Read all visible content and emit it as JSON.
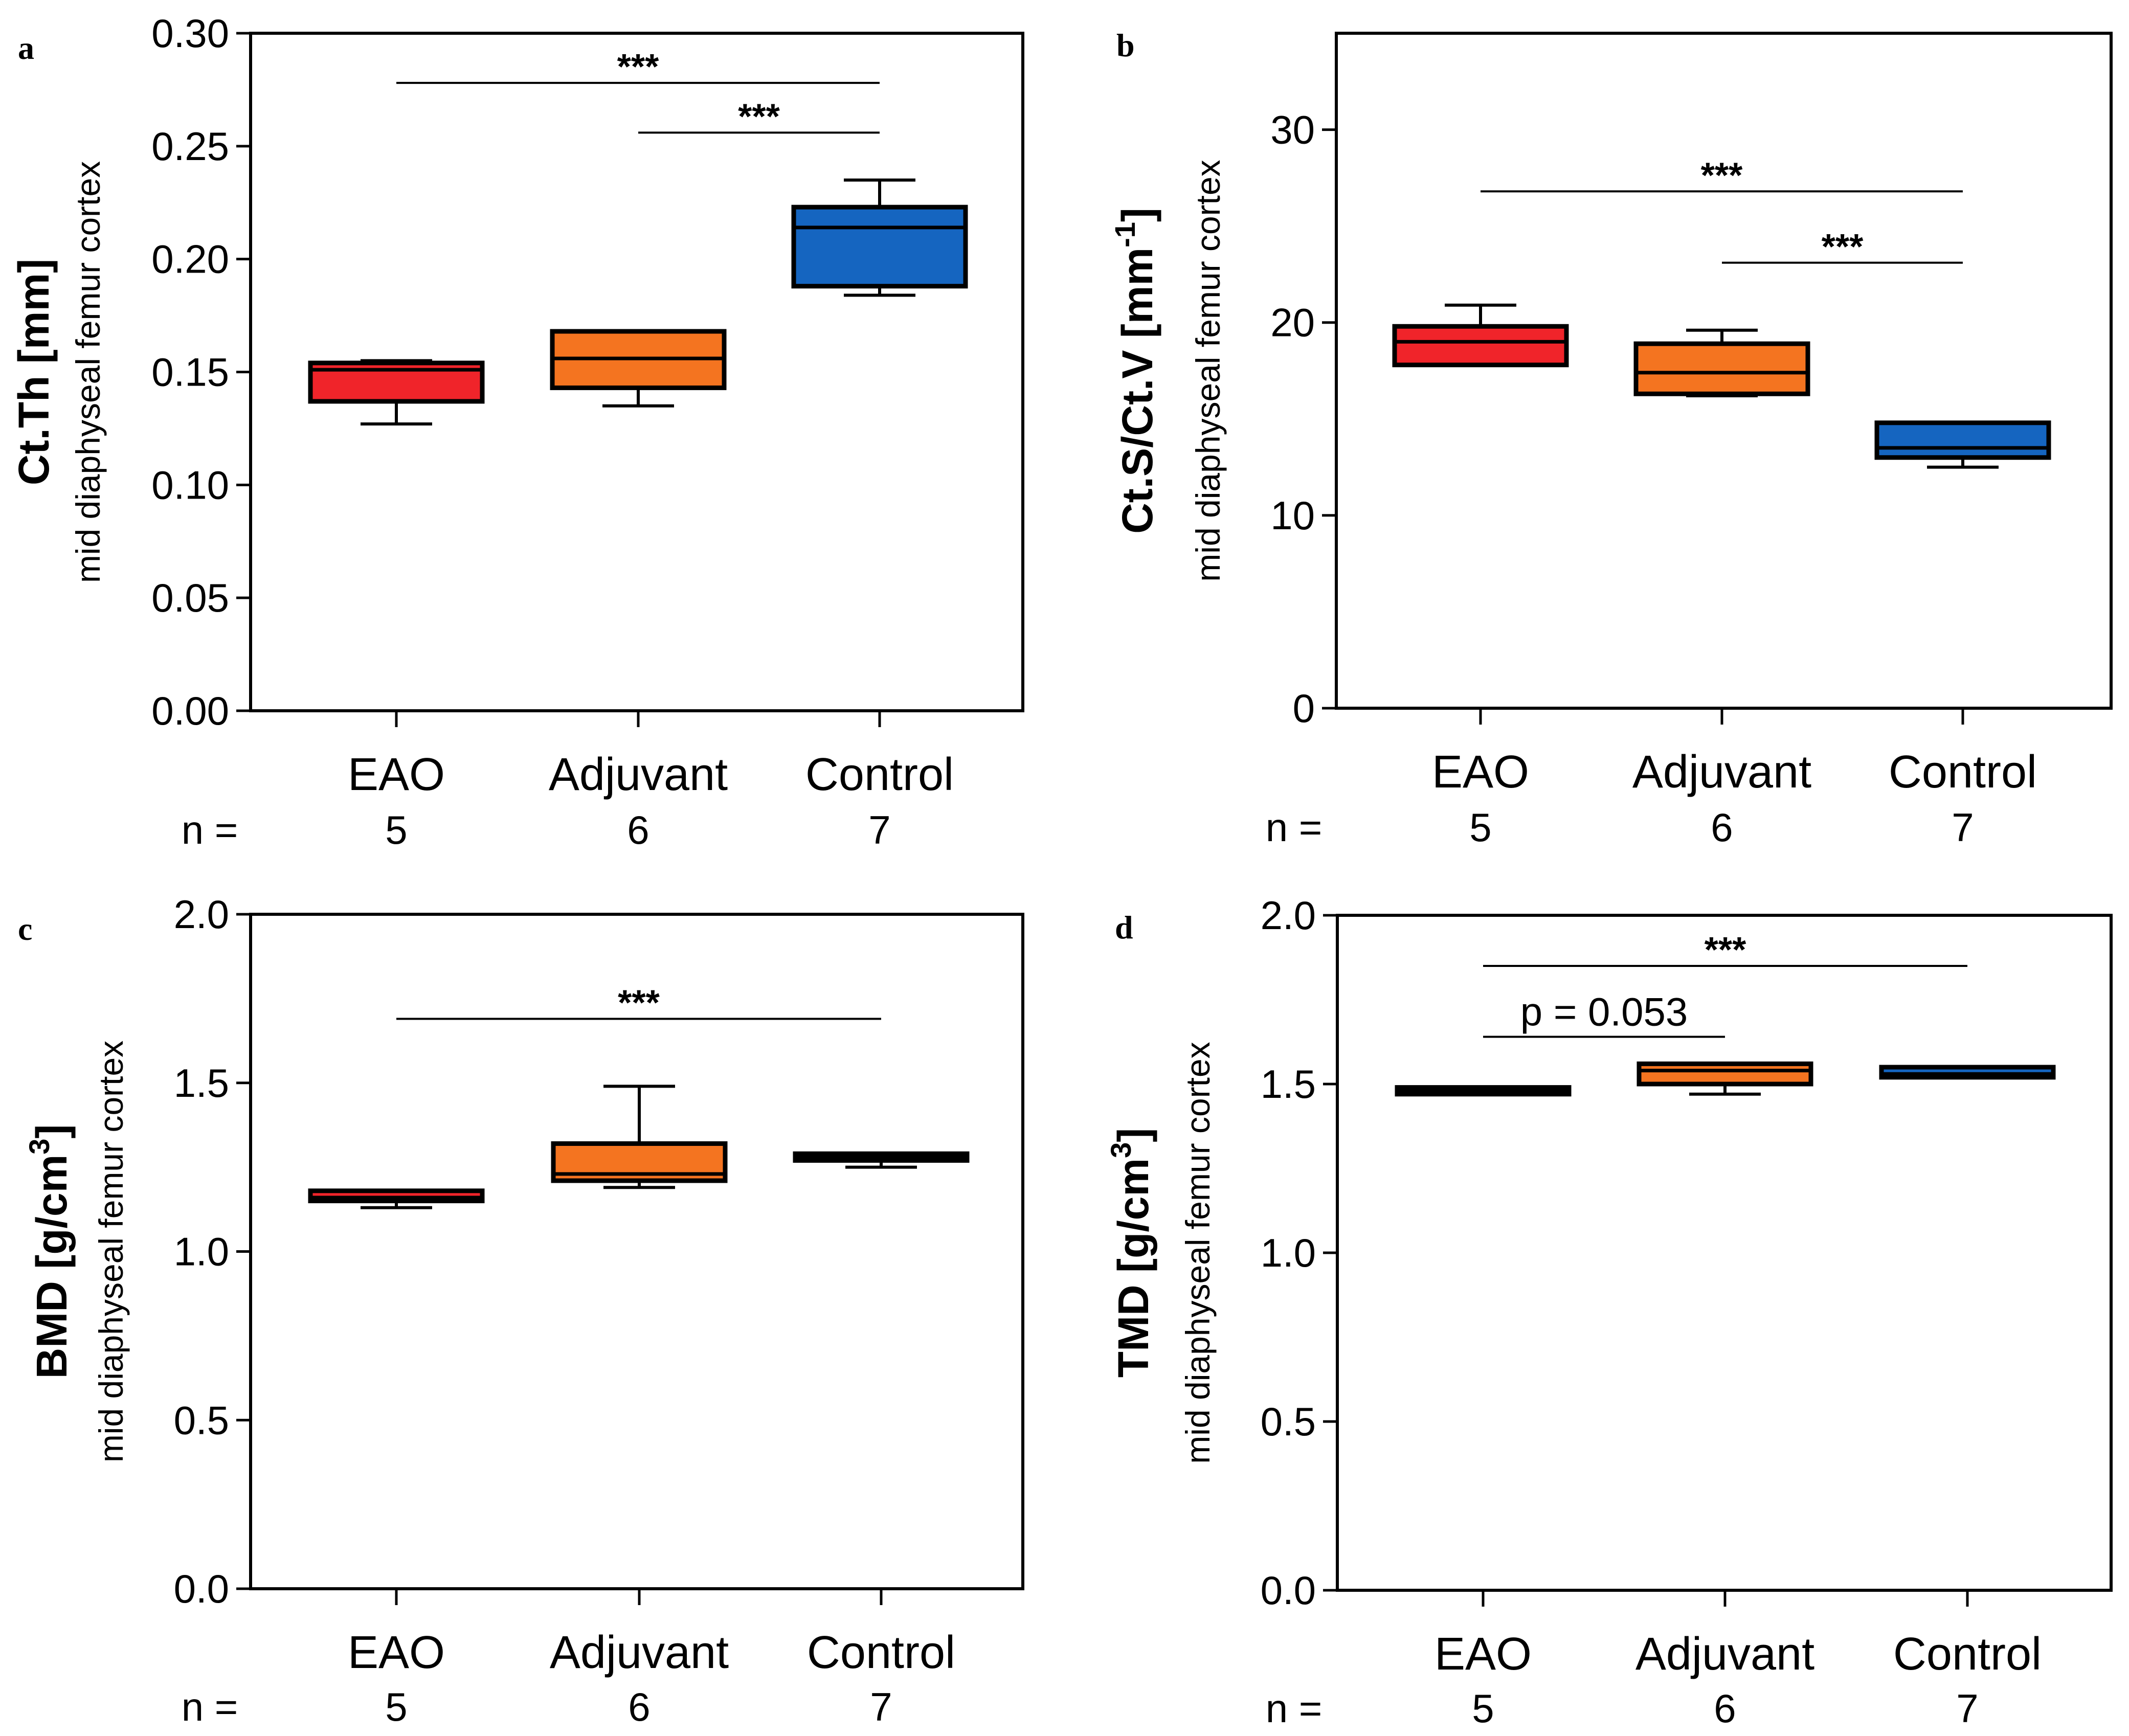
{
  "figure": {
    "n_prefix": "n ="
  },
  "chart_data": [
    {
      "panel": "a",
      "type": "box",
      "ylabel": {
        "main": "Ct.Th [mm]",
        "sup": "",
        "after": "",
        "sub": "mid diaphyseal femur cortex"
      },
      "ylim": [
        0,
        0.3
      ],
      "yticks": [
        0,
        0.05,
        0.1,
        0.15,
        0.2,
        0.25,
        0.3
      ],
      "ytick_labels": [
        "0.00",
        "0.05",
        "0.10",
        "0.15",
        "0.20",
        "0.25",
        "0.30"
      ],
      "categories": [
        "EAO",
        "Adjuvant",
        "Control"
      ],
      "n": [
        "5",
        "6",
        "7"
      ],
      "colors": [
        "#f0242a",
        "#f47420",
        "#1565c0"
      ],
      "boxes": [
        {
          "min": 0.127,
          "q1": 0.137,
          "median": 0.151,
          "q3": 0.154,
          "max": 0.155
        },
        {
          "min": 0.135,
          "q1": 0.143,
          "median": 0.156,
          "q3": 0.168,
          "max": 0.168
        },
        {
          "min": 0.184,
          "q1": 0.188,
          "median": 0.214,
          "q3": 0.223,
          "max": 0.235
        }
      ],
      "significance": [
        {
          "from": 0,
          "to": 2,
          "y": 0.278,
          "label": "***"
        },
        {
          "from": 1,
          "to": 2,
          "y": 0.256,
          "label": "***"
        }
      ]
    },
    {
      "panel": "b",
      "type": "box",
      "ylabel": {
        "main": "Ct.S/Ct.V [mm",
        "sup": "-1",
        "after": "]",
        "sub": "mid diaphyseal femur cortex"
      },
      "ylim": [
        0,
        35
      ],
      "yticks": [
        0,
        10,
        20,
        30
      ],
      "ytick_labels": [
        "0",
        "10",
        "20",
        "30"
      ],
      "categories": [
        "EAO",
        "Adjuvant",
        "Control"
      ],
      "n": [
        "5",
        "6",
        "7"
      ],
      "colors": [
        "#f0242a",
        "#f47420",
        "#1565c0"
      ],
      "boxes": [
        {
          "min": 17.8,
          "q1": 17.8,
          "median": 19.0,
          "q3": 19.8,
          "max": 20.9
        },
        {
          "min": 16.2,
          "q1": 16.3,
          "median": 17.4,
          "q3": 18.9,
          "max": 19.6
        },
        {
          "min": 12.5,
          "q1": 13.0,
          "median": 13.5,
          "q3": 14.8,
          "max": 14.8
        }
      ],
      "significance": [
        {
          "from": 0,
          "to": 2,
          "y": 26.8,
          "label": "***"
        },
        {
          "from": 1,
          "to": 2,
          "y": 23.1,
          "label": "***"
        }
      ]
    },
    {
      "panel": "c",
      "type": "box",
      "ylabel": {
        "main": "BMD [g/cm",
        "sup": "3",
        "after": "]",
        "sub": "mid diaphyseal femur cortex"
      },
      "ylim": [
        0,
        2
      ],
      "yticks": [
        0,
        0.5,
        1,
        1.5,
        2
      ],
      "ytick_labels": [
        "0.0",
        "0.5",
        "1.0",
        "1.5",
        "2.0"
      ],
      "categories": [
        "EAO",
        "Adjuvant",
        "Control"
      ],
      "n": [
        "5",
        "6",
        "7"
      ],
      "colors": [
        "#f0242a",
        "#f47420",
        "#1565c0"
      ],
      "boxes": [
        {
          "min": 1.13,
          "q1": 1.15,
          "median": 1.16,
          "q3": 1.18,
          "max": 1.18
        },
        {
          "min": 1.19,
          "q1": 1.21,
          "median": 1.23,
          "q3": 1.32,
          "max": 1.49
        },
        {
          "min": 1.25,
          "q1": 1.27,
          "median": 1.28,
          "q3": 1.29,
          "max": 1.29
        }
      ],
      "significance": [
        {
          "from": 0,
          "to": 2,
          "y": 1.69,
          "label": "***"
        }
      ]
    },
    {
      "panel": "d",
      "type": "box",
      "ylabel": {
        "main": "TMD [g/cm",
        "sup": "3",
        "after": "]",
        "sub": "mid diaphyseal femur cortex"
      },
      "ylim": [
        0,
        2
      ],
      "yticks": [
        0,
        0.5,
        1,
        1.5,
        2
      ],
      "ytick_labels": [
        "0.0",
        "0.5",
        "1.0",
        "1.5",
        "2.0"
      ],
      "categories": [
        "EAO",
        "Adjuvant",
        "Control"
      ],
      "n": [
        "5",
        "6",
        "7"
      ],
      "colors": [
        "#f0242a",
        "#f47420",
        "#1565c0"
      ],
      "boxes": [
        {
          "min": 1.47,
          "q1": 1.47,
          "median": 1.48,
          "q3": 1.49,
          "max": 1.49
        },
        {
          "min": 1.47,
          "q1": 1.5,
          "median": 1.54,
          "q3": 1.56,
          "max": 1.56
        },
        {
          "min": 1.52,
          "q1": 1.52,
          "median": 1.53,
          "q3": 1.55,
          "max": 1.55
        }
      ],
      "significance": [
        {
          "from": 0,
          "to": 2,
          "y": 1.85,
          "label": "***",
          "style": "bold"
        },
        {
          "from": 0,
          "to": 1,
          "y": 1.64,
          "label": "p = 0.053",
          "style": "plain"
        }
      ]
    }
  ]
}
